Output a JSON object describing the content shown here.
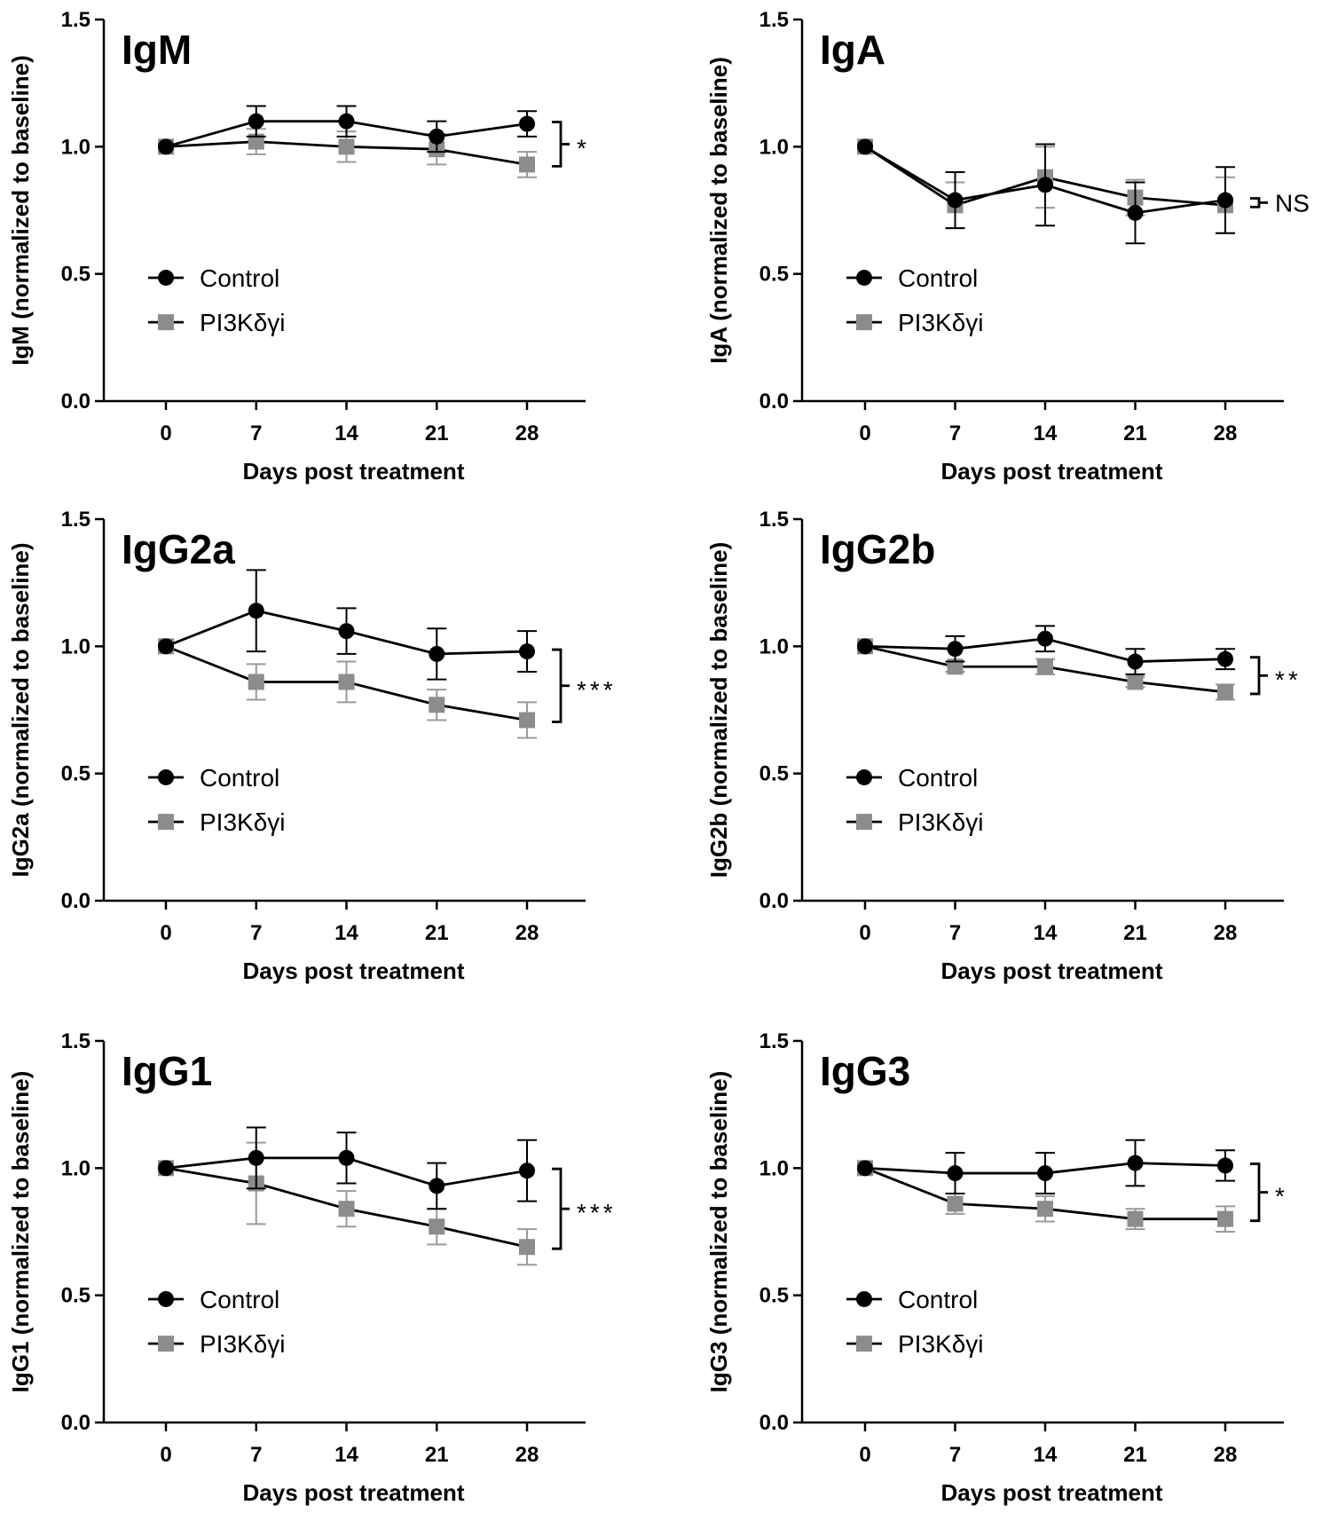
{
  "chart_data": [
    {
      "type": "line",
      "title": "IgM",
      "xlabel": "Days post treatment",
      "ylabel": "IgM (normalized to baseline)",
      "x": [
        0,
        7,
        14,
        21,
        28
      ],
      "x_ticks": [
        "0",
        "7",
        "14",
        "21",
        "28"
      ],
      "ylim": [
        0,
        1.5
      ],
      "y_ticks": [
        "0.0",
        "0.5",
        "1.0",
        "1.5"
      ],
      "legend_position": "middle-left",
      "series": [
        {
          "name": "Control",
          "color": "#000000",
          "marker": "circle",
          "values": [
            1.0,
            1.1,
            1.1,
            1.04,
            1.09
          ],
          "errors": [
            0,
            0.06,
            0.06,
            0.06,
            0.05
          ]
        },
        {
          "name": "PI3Kδγi",
          "color": "#8c8c8c",
          "marker": "square",
          "values": [
            1.0,
            1.02,
            1.0,
            0.99,
            0.93
          ],
          "errors": [
            0,
            0.05,
            0.06,
            0.06,
            0.05
          ]
        }
      ],
      "significance": "*"
    },
    {
      "type": "line",
      "title": "IgA",
      "xlabel": "Days post treatment",
      "ylabel": "IgA (normalized to baseline)",
      "x": [
        0,
        7,
        14,
        21,
        28
      ],
      "x_ticks": [
        "0",
        "7",
        "14",
        "21",
        "28"
      ],
      "ylim": [
        0,
        1.5
      ],
      "y_ticks": [
        "0.0",
        "0.5",
        "1.0",
        "1.5"
      ],
      "legend_position": "middle-left",
      "series": [
        {
          "name": "Control",
          "color": "#000000",
          "marker": "circle",
          "values": [
            1.0,
            0.79,
            0.85,
            0.74,
            0.79
          ],
          "errors": [
            0,
            0.11,
            0.16,
            0.12,
            0.13
          ]
        },
        {
          "name": "PI3Kδγi",
          "color": "#8c8c8c",
          "marker": "square",
          "values": [
            1.0,
            0.77,
            0.88,
            0.8,
            0.77
          ],
          "errors": [
            0,
            0.09,
            0.12,
            0.07,
            0.11
          ]
        }
      ],
      "significance": "NS"
    },
    {
      "type": "line",
      "title": "IgG2a",
      "xlabel": "Days post treatment",
      "ylabel": "IgG2a (normalized to baseline)",
      "x": [
        0,
        7,
        14,
        21,
        28
      ],
      "x_ticks": [
        "0",
        "7",
        "14",
        "21",
        "28"
      ],
      "ylim": [
        0,
        1.5
      ],
      "y_ticks": [
        "0.0",
        "0.5",
        "1.0",
        "1.5"
      ],
      "legend_position": "middle-left",
      "series": [
        {
          "name": "Control",
          "color": "#000000",
          "marker": "circle",
          "values": [
            1.0,
            1.14,
            1.06,
            0.97,
            0.98
          ],
          "errors": [
            0,
            0.16,
            0.09,
            0.1,
            0.08
          ]
        },
        {
          "name": "PI3Kδγi",
          "color": "#8c8c8c",
          "marker": "square",
          "values": [
            1.0,
            0.86,
            0.86,
            0.77,
            0.71
          ],
          "errors": [
            0,
            0.07,
            0.08,
            0.06,
            0.07
          ]
        }
      ],
      "significance": "***"
    },
    {
      "type": "line",
      "title": "IgG2b",
      "xlabel": "Days post treatment",
      "ylabel": "IgG2b (normalized to baseline)",
      "x": [
        0,
        7,
        14,
        21,
        28
      ],
      "x_ticks": [
        "0",
        "7",
        "14",
        "21",
        "28"
      ],
      "ylim": [
        0,
        1.5
      ],
      "y_ticks": [
        "0.0",
        "0.5",
        "1.0",
        "1.5"
      ],
      "legend_position": "middle-left",
      "series": [
        {
          "name": "Control",
          "color": "#000000",
          "marker": "circle",
          "values": [
            1.0,
            0.99,
            1.03,
            0.94,
            0.95
          ],
          "errors": [
            0,
            0.05,
            0.05,
            0.05,
            0.04
          ]
        },
        {
          "name": "PI3Kδγi",
          "color": "#8c8c8c",
          "marker": "square",
          "values": [
            1.0,
            0.92,
            0.92,
            0.86,
            0.82
          ],
          "errors": [
            0,
            0.02,
            0.03,
            0.02,
            0.03
          ]
        }
      ],
      "significance": "**"
    },
    {
      "type": "line",
      "title": "IgG1",
      "xlabel": "Days post treatment",
      "ylabel": "IgG1 (normalized to baseline)",
      "x": [
        0,
        7,
        14,
        21,
        28
      ],
      "x_ticks": [
        "0",
        "7",
        "14",
        "21",
        "28"
      ],
      "ylim": [
        0,
        1.5
      ],
      "y_ticks": [
        "0.0",
        "0.5",
        "1.0",
        "1.5"
      ],
      "legend_position": "middle-left",
      "series": [
        {
          "name": "Control",
          "color": "#000000",
          "marker": "circle",
          "values": [
            1.0,
            1.04,
            1.04,
            0.93,
            0.99
          ],
          "errors": [
            0,
            0.12,
            0.1,
            0.09,
            0.12
          ]
        },
        {
          "name": "PI3Kδγi",
          "color": "#8c8c8c",
          "marker": "square",
          "values": [
            1.0,
            0.94,
            0.84,
            0.77,
            0.69
          ],
          "errors": [
            0,
            0.16,
            0.07,
            0.07,
            0.07
          ]
        }
      ],
      "significance": "***"
    },
    {
      "type": "line",
      "title": "IgG3",
      "xlabel": "Days post treatment",
      "ylabel": "IgG3 (normalized to baseline)",
      "x": [
        0,
        7,
        14,
        21,
        28
      ],
      "x_ticks": [
        "0",
        "7",
        "14",
        "21",
        "28"
      ],
      "ylim": [
        0,
        1.5
      ],
      "y_ticks": [
        "0.0",
        "0.5",
        "1.0",
        "1.5"
      ],
      "legend_position": "middle-left",
      "series": [
        {
          "name": "Control",
          "color": "#000000",
          "marker": "circle",
          "values": [
            1.0,
            0.98,
            0.98,
            1.02,
            1.01
          ],
          "errors": [
            0,
            0.08,
            0.08,
            0.09,
            0.06
          ]
        },
        {
          "name": "PI3Kδγi",
          "color": "#8c8c8c",
          "marker": "square",
          "values": [
            1.0,
            0.86,
            0.84,
            0.8,
            0.8
          ],
          "errors": [
            0,
            0.04,
            0.05,
            0.04,
            0.05
          ]
        }
      ],
      "significance": "*"
    }
  ]
}
